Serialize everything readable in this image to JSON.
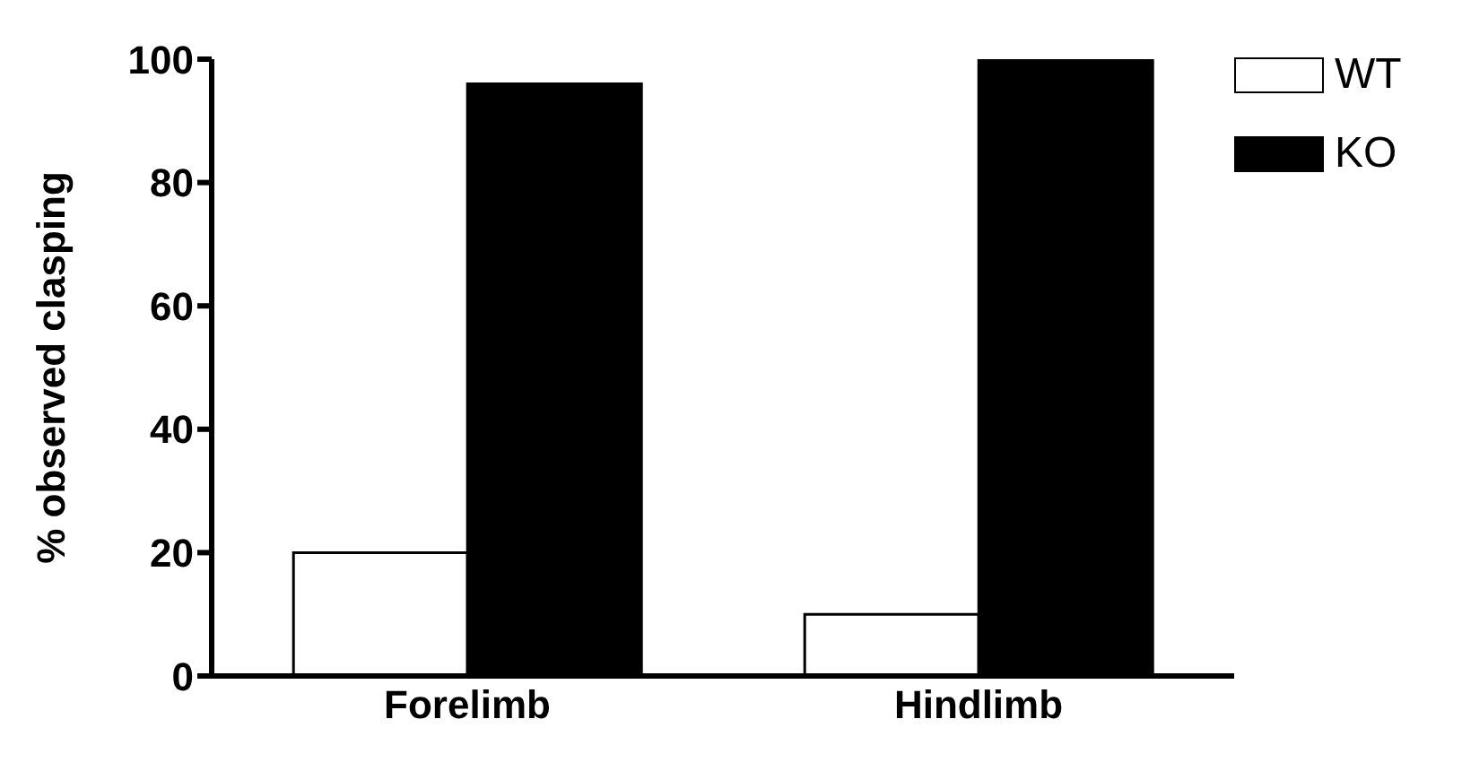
{
  "chart_data": {
    "type": "bar",
    "ylabel": "% observed clasping",
    "categories": [
      "Forelimb",
      "Hindlimb"
    ],
    "series": [
      {
        "name": "WT",
        "color": "#ffffff",
        "values": [
          20,
          10
        ]
      },
      {
        "name": "KO",
        "color": "#000000",
        "values": [
          96,
          100
        ]
      }
    ],
    "ylim": [
      0,
      100
    ],
    "yticks": [
      0,
      20,
      40,
      60,
      80,
      100
    ],
    "legend": "top right"
  }
}
